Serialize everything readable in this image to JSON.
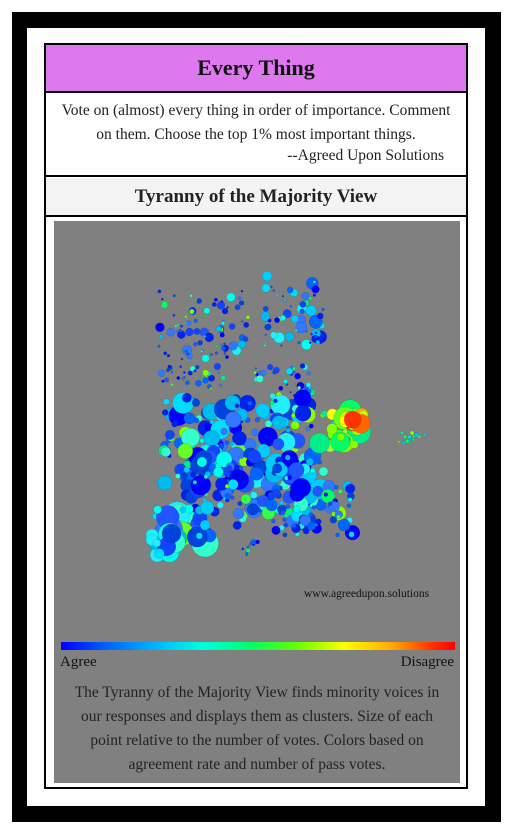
{
  "header": {
    "title": "Every Thing"
  },
  "description": {
    "line1": "Vote on (almost) every thing in order of importance. Comment",
    "line2": "on them. Choose the top 1% most important things.",
    "signature": "--Agreed Upon Solutions"
  },
  "view": {
    "title": "Tyranny of the Majority View"
  },
  "plot": {
    "watermark": "www.agreedupon.solutions",
    "scale_left": "Agree",
    "scale_right": "Disagree",
    "footnote": "The Tyranny of the Majority View finds minority voices in our responses and displays them as clusters. Size of each point relative to the number of votes. Colors based on agreement rate and number of pass votes.",
    "colors": {
      "background": "#808080",
      "agree": "#0000ff",
      "neutral": "#00ffee",
      "disagree": "#ff0000"
    }
  }
}
